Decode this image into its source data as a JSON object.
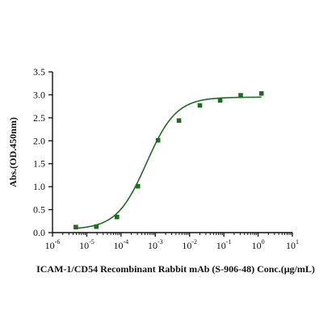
{
  "chart_data": {
    "type": "scatter",
    "xlabel": "ICAM-1/CD54 Recombinant Rabbit mAb (S-906-48) Conc.(μg/mL)",
    "ylabel": "Abs.(OD.450nm)",
    "x_scale": "log10",
    "xlim": [
      1e-06,
      10
    ],
    "ylim": [
      0,
      3.5
    ],
    "x_ticks": [
      {
        "exp": "-6",
        "value": 1e-06
      },
      {
        "exp": "-5",
        "value": 1e-05
      },
      {
        "exp": "-4",
        "value": 0.0001
      },
      {
        "exp": "-3",
        "value": 0.001
      },
      {
        "exp": "-2",
        "value": 0.01
      },
      {
        "exp": "-1",
        "value": 0.1
      },
      {
        "exp": "0",
        "value": 1
      },
      {
        "exp": "1",
        "value": 10
      }
    ],
    "y_ticks": [
      "0.0",
      "0.5",
      "1.0",
      "1.5",
      "2.0",
      "2.5",
      "3.0",
      "3.5"
    ],
    "grid": false,
    "colors": {
      "series": "#1f6b1f",
      "axis": "#111111"
    },
    "series": [
      {
        "x": [
          4.8e-06,
          1.9e-05,
          7.6e-05,
          0.00031,
          0.0012,
          0.0049,
          0.02,
          0.078,
          0.31,
          1.25
        ],
        "y": [
          0.12,
          0.13,
          0.34,
          1.01,
          2.01,
          2.44,
          2.77,
          2.88,
          2.99,
          3.03
        ]
      }
    ],
    "fit": {
      "type": "4PL",
      "bottom": 0.07,
      "top": 2.95,
      "ec50": 0.00055,
      "hill": 1.0
    }
  }
}
